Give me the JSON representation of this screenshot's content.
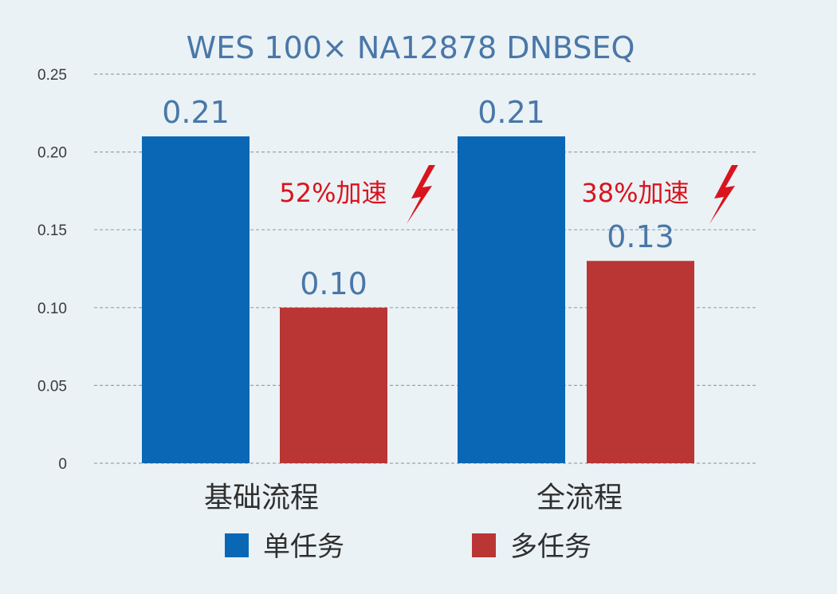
{
  "chart_data": {
    "type": "bar",
    "title": "WES 100× NA12878 DNBSEQ",
    "categories": [
      "基础流程",
      "全流程"
    ],
    "series": [
      {
        "name": "单任务",
        "values": [
          0.21,
          0.21
        ],
        "labels": [
          "0.21",
          "0.21"
        ],
        "color": "#0a67b5"
      },
      {
        "name": "多任务",
        "values": [
          0.1,
          0.13
        ],
        "labels": [
          "0.10",
          "0.13"
        ],
        "color": "#b93634"
      }
    ],
    "ylim": [
      0,
      0.25
    ],
    "yticks": [
      "0",
      "0.05",
      "0.10",
      "0.15",
      "0.20",
      "0.25"
    ],
    "grid": true,
    "legend_position": "bottom",
    "annotations": [
      {
        "category": "基础流程",
        "text": "52%加速",
        "icon": "lightning-icon",
        "color": "#d9141e"
      },
      {
        "category": "全流程",
        "text": "38%加速",
        "icon": "lightning-icon",
        "color": "#d9141e"
      }
    ]
  }
}
